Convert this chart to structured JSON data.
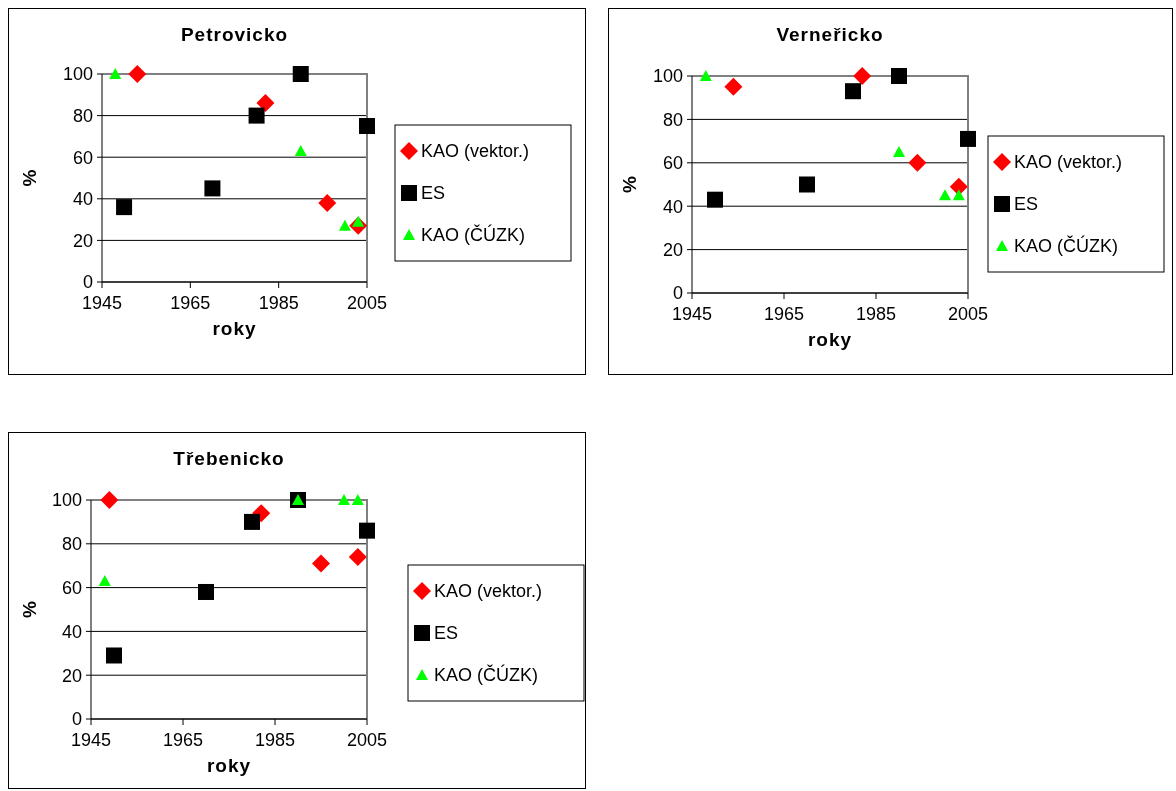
{
  "chart_data": [
    {
      "type": "scatter",
      "title": "Petrovicko",
      "xlabel": "roky",
      "ylabel": "%",
      "xlim": [
        1945,
        2005
      ],
      "xticks": [
        1945,
        1965,
        1985,
        2005
      ],
      "ylim": [
        0,
        100
      ],
      "yticks": [
        0,
        20,
        40,
        60,
        80,
        100
      ],
      "grid": "y",
      "legend": "right",
      "series": [
        {
          "name": "KAO (vektor.)",
          "color": "#ff0000",
          "marker": "diamond",
          "x": [
            1953,
            1982,
            1996,
            2003
          ],
          "values": [
            100,
            86,
            38,
            27
          ]
        },
        {
          "name": "ES",
          "color": "#000000",
          "marker": "square",
          "x": [
            1950,
            1970,
            1980,
            1990,
            2005
          ],
          "values": [
            36,
            45,
            80,
            100,
            75
          ]
        },
        {
          "name": "KAO (ČÚZK)",
          "color": "#00ff00",
          "marker": "triangle",
          "x": [
            1948,
            1990,
            2000,
            2003
          ],
          "values": [
            100,
            63,
            27,
            29
          ]
        }
      ]
    },
    {
      "type": "scatter",
      "title": "Verneřicko",
      "xlabel": "roky",
      "ylabel": "%",
      "xlim": [
        1945,
        2005
      ],
      "xticks": [
        1945,
        1965,
        1985,
        2005
      ],
      "ylim": [
        0,
        100
      ],
      "yticks": [
        0,
        20,
        40,
        60,
        80,
        100
      ],
      "grid": "y",
      "legend": "right",
      "series": [
        {
          "name": "KAO (vektor.)",
          "color": "#ff0000",
          "marker": "diamond",
          "x": [
            1954,
            1982,
            1994,
            2003
          ],
          "values": [
            95,
            100,
            60,
            49
          ]
        },
        {
          "name": "ES",
          "color": "#000000",
          "marker": "square",
          "x": [
            1950,
            1970,
            1980,
            1990,
            2005
          ],
          "values": [
            43,
            50,
            93,
            100,
            71
          ]
        },
        {
          "name": "KAO (ČÚZK)",
          "color": "#00ff00",
          "marker": "triangle",
          "x": [
            1948,
            1990,
            2000,
            2003
          ],
          "values": [
            100,
            65,
            45,
            45
          ]
        }
      ]
    },
    {
      "type": "scatter",
      "title": "Třebenicko",
      "xlabel": "roky",
      "ylabel": "%",
      "xlim": [
        1945,
        2005
      ],
      "xticks": [
        1945,
        1965,
        1985,
        2005
      ],
      "ylim": [
        0,
        100
      ],
      "yticks": [
        0,
        20,
        40,
        60,
        80,
        100
      ],
      "grid": "y",
      "legend": "right",
      "series": [
        {
          "name": "KAO (vektor.)",
          "color": "#ff0000",
          "marker": "diamond",
          "x": [
            1949,
            1982,
            1995,
            2003
          ],
          "values": [
            100,
            94,
            71,
            74
          ]
        },
        {
          "name": "ES",
          "color": "#000000",
          "marker": "square",
          "x": [
            1950,
            1970,
            1980,
            1990,
            2005
          ],
          "values": [
            29,
            58,
            90,
            100,
            86
          ]
        },
        {
          "name": "KAO (ČÚZK)",
          "color": "#00ff00",
          "marker": "triangle",
          "x": [
            1948,
            1990,
            2000,
            2003
          ],
          "values": [
            63,
            100,
            100,
            100
          ]
        }
      ]
    }
  ]
}
